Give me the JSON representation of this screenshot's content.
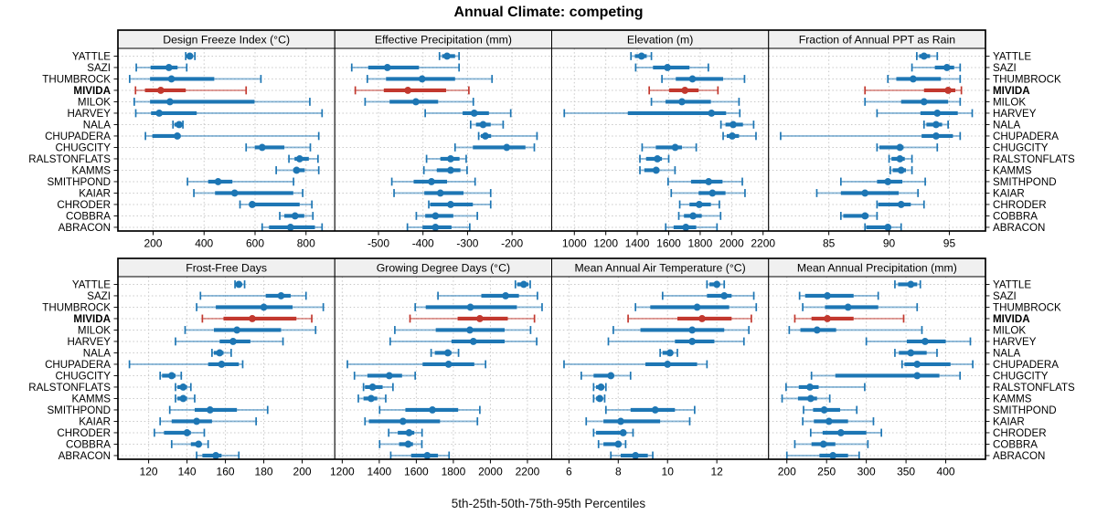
{
  "title": "Annual Climate: competing",
  "caption": "5th-25th-50th-75th-95th Percentiles",
  "highlight_category": "MIVIDA",
  "colors": {
    "series": "#1d76b4",
    "highlight": "#c2382e",
    "strip_bg": "#f0f0f0",
    "grid": "#c9c9c9",
    "border": "#000000",
    "text": "#000000"
  },
  "chart_data": {
    "type": "dot-whisker-percentiles",
    "percentile_levels": [
      5,
      25,
      50,
      75,
      95
    ],
    "legend_note": "thin line = 5th-95th, thick bar = 25th-75th, dot = median",
    "categories": [
      "YATTLE",
      "SAZI",
      "THUMBROCK",
      "MIVIDA",
      "MILOK",
      "HARVEY",
      "NALA",
      "CHUPADERA",
      "CHUGCITY",
      "RALSTONFLATS",
      "KAMMS",
      "SMITHPOND",
      "KAIAR",
      "CHRODER",
      "COBBRA",
      "ABRACON"
    ],
    "panels": [
      {
        "title": "Design Freeze Index (°C)",
        "xlim": [
          62,
          913
        ],
        "ticks": [
          200,
          400,
          600,
          800
        ],
        "values": [
          [
            328,
            334,
            344,
            356,
            364
          ],
          [
            134,
            190,
            262,
            296,
            332
          ],
          [
            108,
            188,
            272,
            440,
            623
          ],
          [
            131,
            168,
            230,
            328,
            565
          ],
          [
            126,
            188,
            266,
            598,
            815
          ],
          [
            132,
            192,
            224,
            371,
            863
          ],
          [
            278,
            284,
            302,
            310,
            317
          ],
          [
            170,
            197,
            295,
            308,
            850
          ],
          [
            565,
            599,
            628,
            715,
            817
          ],
          [
            733,
            755,
            775,
            811,
            847
          ],
          [
            683,
            750,
            763,
            795,
            850
          ],
          [
            335,
            416,
            455,
            511,
            751
          ],
          [
            360,
            443,
            520,
            750,
            787
          ],
          [
            541,
            577,
            589,
            775,
            823
          ],
          [
            697,
            715,
            757,
            793,
            827
          ],
          [
            628,
            655,
            739,
            835,
            863
          ]
        ]
      },
      {
        "title": "Effective Precipitation (mm)",
        "xlim": [
          -598,
          -111
        ],
        "ticks": [
          -500,
          -400,
          -300,
          -200
        ],
        "values": [
          [
            -363,
            -357,
            -346,
            -328,
            -319
          ],
          [
            -560,
            -523,
            -480,
            -409,
            -319
          ],
          [
            -525,
            -483,
            -402,
            -328,
            -245
          ],
          [
            -552,
            -488,
            -434,
            -348,
            -297
          ],
          [
            -530,
            -475,
            -416,
            -366,
            -287
          ],
          [
            -395,
            -311,
            -285,
            -252,
            -203
          ],
          [
            -293,
            -281,
            -265,
            -248,
            -220
          ],
          [
            -275,
            -270,
            -260,
            -247,
            -144
          ],
          [
            -328,
            -288,
            -212,
            -170,
            -150
          ],
          [
            -392,
            -361,
            -338,
            -318,
            -303
          ],
          [
            -398,
            -369,
            -338,
            -316,
            -301
          ],
          [
            -470,
            -421,
            -381,
            -346,
            -283
          ],
          [
            -465,
            -397,
            -361,
            -309,
            -248
          ],
          [
            -387,
            -384,
            -338,
            -288,
            -248
          ],
          [
            -415,
            -395,
            -372,
            -332,
            -278
          ],
          [
            -435,
            -401,
            -372,
            -336,
            -295
          ]
        ]
      },
      {
        "title": "Elevation (m)",
        "xlim": [
          856,
          2235
        ],
        "ticks": [
          1000,
          1200,
          1400,
          1600,
          1800,
          2000,
          2200
        ],
        "values": [
          [
            1360,
            1385,
            1427,
            1460,
            1490
          ],
          [
            1390,
            1500,
            1592,
            1732,
            1852
          ],
          [
            1557,
            1645,
            1751,
            1946,
            2082
          ],
          [
            1476,
            1602,
            1703,
            1790,
            1913
          ],
          [
            1490,
            1580,
            1684,
            1868,
            2047
          ],
          [
            936,
            1340,
            1872,
            1965,
            2052
          ],
          [
            1932,
            1961,
            2010,
            2072,
            2140
          ],
          [
            1946,
            1969,
            2004,
            2047,
            2155
          ],
          [
            1431,
            1518,
            1641,
            1684,
            1775
          ],
          [
            1417,
            1456,
            1528,
            1557,
            1600
          ],
          [
            1417,
            1445,
            1520,
            1540,
            1640
          ],
          [
            1596,
            1742,
            1854,
            1942,
            2068
          ],
          [
            1616,
            1790,
            1878,
            1961,
            2085
          ],
          [
            1670,
            1732,
            1794,
            1868,
            1922
          ],
          [
            1664,
            1697,
            1755,
            1810,
            1930
          ],
          [
            1581,
            1631,
            1709,
            1775,
            1907
          ]
        ]
      },
      {
        "title": "Fraction of Annual PPT as Rain",
        "xlim": [
          80,
          98
        ],
        "ticks": [
          85,
          90,
          95
        ],
        "values": [
          [
            92.3,
            92.5,
            92.9,
            93.4,
            94.0
          ],
          [
            91.9,
            93.8,
            94.8,
            95.4,
            95.9
          ],
          [
            89.9,
            90.6,
            92.0,
            94.3,
            95.9
          ],
          [
            88.0,
            92.9,
            94.9,
            95.5,
            96.0
          ],
          [
            88.0,
            91.0,
            92.9,
            94.9,
            95.9
          ],
          [
            89.0,
            92.6,
            94.0,
            95.7,
            96.9
          ],
          [
            92.9,
            93.1,
            93.9,
            94.4,
            94.9
          ],
          [
            81.0,
            92.7,
            93.9,
            95.3,
            95.9
          ],
          [
            89.0,
            89.2,
            90.9,
            91.2,
            94.0
          ],
          [
            90.0,
            90.2,
            90.9,
            91.3,
            91.9
          ],
          [
            90.1,
            90.3,
            91.0,
            91.4,
            91.9
          ],
          [
            86.0,
            89.0,
            89.9,
            91.1,
            93.0
          ],
          [
            84.0,
            86.0,
            88.0,
            90.8,
            92.4
          ],
          [
            89.0,
            89.1,
            91.0,
            91.8,
            92.9
          ],
          [
            86.0,
            86.2,
            88.0,
            88.3,
            89.0
          ],
          [
            88.0,
            88.1,
            89.9,
            90.1,
            91.0
          ]
        ]
      },
      {
        "title": "Frost-Free Days",
        "xlim": [
          104,
          217
        ],
        "ticks": [
          120,
          140,
          160,
          180,
          200
        ],
        "values": [
          [
            165,
            166,
            167,
            168,
            170
          ],
          [
            147,
            181,
            189,
            194,
            202
          ],
          [
            145,
            155,
            180,
            195,
            211
          ],
          [
            148,
            159,
            174,
            197,
            205
          ],
          [
            139,
            154,
            166,
            189,
            207
          ],
          [
            134,
            157,
            164,
            173,
            190
          ],
          [
            153,
            154,
            157,
            159,
            163
          ],
          [
            110,
            151,
            158,
            167,
            169
          ],
          [
            126,
            127,
            132,
            134,
            137
          ],
          [
            134,
            135,
            138,
            140,
            142
          ],
          [
            134,
            135,
            138,
            140,
            144
          ],
          [
            131,
            144,
            152,
            166,
            182
          ],
          [
            126,
            132,
            145,
            153,
            176
          ],
          [
            123,
            128,
            140,
            142,
            149
          ],
          [
            132,
            142,
            146,
            147,
            151
          ],
          [
            145,
            148,
            155,
            158,
            167
          ]
        ]
      },
      {
        "title": "Growing Degree Days (°C)",
        "xlim": [
          1160,
          2331
        ],
        "ticks": [
          1200,
          1400,
          1600,
          1800,
          2000,
          2200
        ],
        "values": [
          [
            2135,
            2145,
            2180,
            2205,
            2215
          ],
          [
            1717,
            1951,
            2082,
            2154,
            2254
          ],
          [
            1594,
            1651,
            1892,
            2143,
            2279
          ],
          [
            1566,
            1823,
            1943,
            2094,
            2238
          ],
          [
            1484,
            1705,
            1889,
            2077,
            2217
          ],
          [
            1459,
            1790,
            1908,
            2077,
            2250
          ],
          [
            1680,
            1700,
            1770,
            1790,
            1828
          ],
          [
            1228,
            1634,
            1774,
            1913,
            1974
          ],
          [
            1266,
            1336,
            1454,
            1523,
            1594
          ],
          [
            1315,
            1323,
            1364,
            1418,
            1474
          ],
          [
            1287,
            1315,
            1356,
            1389,
            1435
          ],
          [
            1402,
            1541,
            1687,
            1826,
            1943
          ],
          [
            1323,
            1344,
            1528,
            1728,
            1930
          ],
          [
            1451,
            1500,
            1561,
            1589,
            1631
          ],
          [
            1402,
            1507,
            1556,
            1582,
            1630
          ],
          [
            1462,
            1572,
            1659,
            1717,
            1777
          ]
        ]
      },
      {
        "title": "Mean Annual Air Temperature (°C)",
        "xlim": [
          5.3,
          14.1
        ],
        "ticks": [
          6,
          8,
          10,
          12
        ],
        "values": [
          [
            11.6,
            11.7,
            12.0,
            12.1,
            12.3
          ],
          [
            9.8,
            11.6,
            12.3,
            12.6,
            13.5
          ],
          [
            8.7,
            9.3,
            11.2,
            12.5,
            13.6
          ],
          [
            8.4,
            10.4,
            11.4,
            12.6,
            13.4
          ],
          [
            7.8,
            8.9,
            11.0,
            12.3,
            13.3
          ],
          [
            7.6,
            10.3,
            11.0,
            11.9,
            13.1
          ],
          [
            9.7,
            9.8,
            10.1,
            10.2,
            10.4
          ],
          [
            5.8,
            9.1,
            10.0,
            11.2,
            11.6
          ],
          [
            6.5,
            7.0,
            7.7,
            7.8,
            8.5
          ],
          [
            7.0,
            7.1,
            7.3,
            7.4,
            7.5
          ],
          [
            7.0,
            7.1,
            7.25,
            7.35,
            7.45
          ],
          [
            7.5,
            8.5,
            9.5,
            10.3,
            11.1
          ],
          [
            6.7,
            7.4,
            8.1,
            9.7,
            10.9
          ],
          [
            7.0,
            7.1,
            8.2,
            8.3,
            8.6
          ],
          [
            7.2,
            7.4,
            8.0,
            8.1,
            8.3
          ],
          [
            7.7,
            8.1,
            8.7,
            9.2,
            9.4
          ]
        ]
      },
      {
        "title": "Mean Annual Precipitation (mm)",
        "xlim": [
          177,
          450
        ],
        "ticks": [
          200,
          250,
          300,
          350,
          400
        ],
        "values": [
          [
            336,
            340,
            356,
            364,
            368
          ],
          [
            216,
            223,
            251,
            284,
            315
          ],
          [
            220,
            248,
            277,
            315,
            364
          ],
          [
            210,
            231,
            251,
            284,
            347
          ],
          [
            203,
            217,
            238,
            262,
            370
          ],
          [
            300,
            351,
            374,
            400,
            431
          ],
          [
            336,
            341,
            356,
            376,
            389
          ],
          [
            345,
            348,
            364,
            406,
            434
          ],
          [
            231,
            261,
            364,
            392,
            418
          ],
          [
            199,
            215,
            229,
            240,
            298
          ],
          [
            194,
            214,
            230,
            238,
            254
          ],
          [
            221,
            233,
            247,
            267,
            288
          ],
          [
            220,
            234,
            253,
            277,
            309
          ],
          [
            230,
            245,
            268,
            300,
            319
          ],
          [
            210,
            231,
            246,
            261,
            302
          ],
          [
            200,
            241,
            258,
            277,
            291
          ]
        ]
      }
    ]
  }
}
